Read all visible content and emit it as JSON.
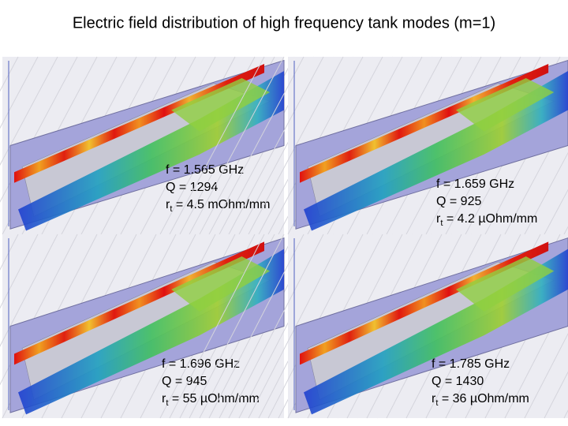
{
  "title": "Electric field distribution of high frequency tank modes (m=1)",
  "panels": [
    {
      "frequency": "f = 1.565 GHz",
      "q": "Q = 1294",
      "rt": {
        "symbol": "r",
        "subscript": "t",
        "value": " = 4.5 mOhm/mm"
      }
    },
    {
      "frequency": "f = 1.659 GHz",
      "q": "Q = 925",
      "rt": {
        "symbol": "r",
        "subscript": "t",
        "value": " = 4.2 µOhm/mm"
      }
    },
    {
      "frequency": "f = 1.696 GHz",
      "q": "Q = 945",
      "rt": {
        "symbol": "r",
        "subscript": "t",
        "value": " = 55 µOhm/mm"
      }
    },
    {
      "frequency": "f = 1.785 GHz",
      "q": "Q = 1430",
      "rt": {
        "symbol": "r",
        "subscript": "t",
        "value": " = 36 µOhm/mm"
      }
    }
  ]
}
